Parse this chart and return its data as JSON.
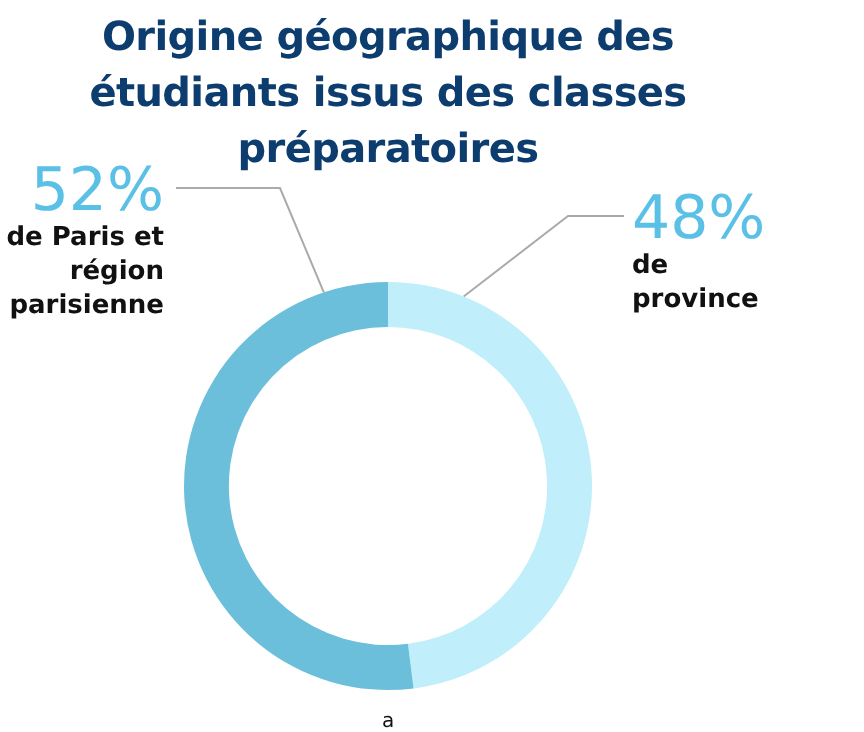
{
  "chart_data": {
    "type": "donut",
    "title": "Origine géographique des étudiants issus des classes préparatoires",
    "categories": [
      "de province",
      "de Paris et région parisienne"
    ],
    "values": [
      48,
      52
    ],
    "colors": [
      "#c0eefa",
      "#6bbfdb"
    ],
    "value_labels": [
      "48%",
      "52%"
    ],
    "annotations": [
      "a"
    ],
    "legend": false
  }
}
